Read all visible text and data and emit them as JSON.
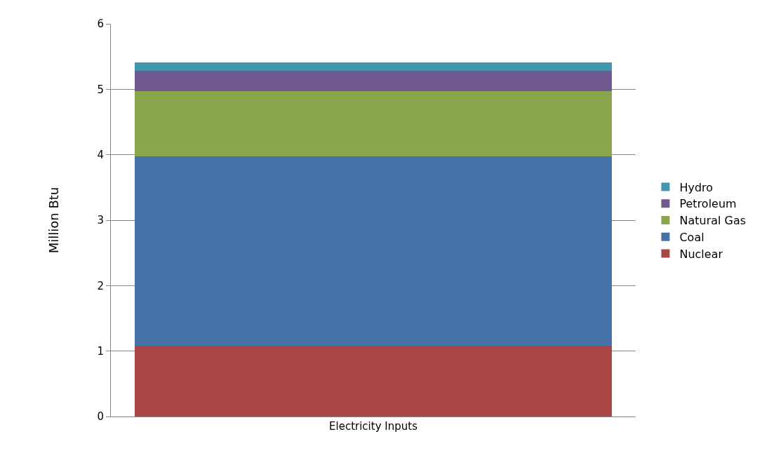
{
  "chart_data": {
    "type": "bar",
    "stacked": true,
    "ylabel": "Million Btu",
    "categories": [
      "Electricity Inputs"
    ],
    "series": [
      {
        "name": "Nuclear",
        "color": "#aa4643",
        "values": [
          1.08
        ]
      },
      {
        "name": "Coal",
        "color": "#4572a7",
        "values": [
          2.9
        ]
      },
      {
        "name": "Natural Gas",
        "color": "#89a54e",
        "values": [
          0.99
        ]
      },
      {
        "name": "Petroleum",
        "color": "#71588f",
        "values": [
          0.31
        ]
      },
      {
        "name": "Hydro",
        "color": "#4198af",
        "values": [
          0.13
        ]
      }
    ],
    "ylim": [
      0,
      6
    ],
    "yticks": [
      0,
      1,
      2,
      3,
      4,
      5,
      6
    ],
    "grid": "y",
    "legend": "right"
  }
}
